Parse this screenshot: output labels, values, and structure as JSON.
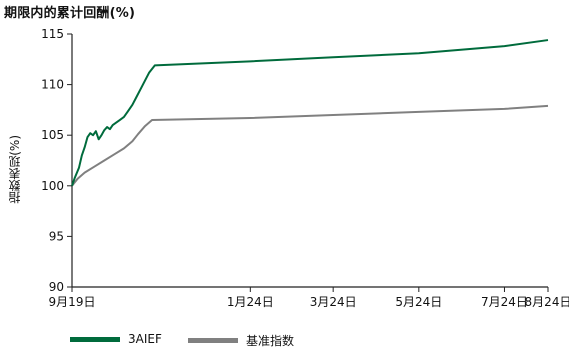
{
  "chart_data": {
    "type": "line",
    "title": "期限内的累计回酬(%)",
    "xlabel": "",
    "ylabel": "指数表现(%)",
    "ylim": [
      90,
      115
    ],
    "yticks": [
      90,
      95,
      100,
      105,
      110,
      115
    ],
    "xlim": [
      "2024-09-19",
      "2025-08-24"
    ],
    "xticks": [
      {
        "date": "2024-09-19",
        "label": "9月19日"
      },
      {
        "date": "2025-01-24",
        "label": "1月24日"
      },
      {
        "date": "2025-03-24",
        "label": "3月24日"
      },
      {
        "date": "2025-05-24",
        "label": "5月24日"
      },
      {
        "date": "2025-07-24",
        "label": "7月24日"
      },
      {
        "date": "2025-08-24",
        "label": "8月24日"
      }
    ],
    "grid": false,
    "legend_position": "bottom-left",
    "series": [
      {
        "name": "3AIEF",
        "color": "#006b3c",
        "points": [
          [
            "2024-09-19",
            100.0
          ],
          [
            "2024-09-21",
            100.8
          ],
          [
            "2024-09-24",
            101.8
          ],
          [
            "2024-09-26",
            103.0
          ],
          [
            "2024-09-28",
            103.8
          ],
          [
            "2024-09-30",
            104.8
          ],
          [
            "2024-10-02",
            105.2
          ],
          [
            "2024-10-04",
            105.0
          ],
          [
            "2024-10-06",
            105.4
          ],
          [
            "2024-10-08",
            104.6
          ],
          [
            "2024-10-10",
            105.0
          ],
          [
            "2024-10-12",
            105.5
          ],
          [
            "2024-10-14",
            105.8
          ],
          [
            "2024-10-16",
            105.6
          ],
          [
            "2024-10-18",
            106.0
          ],
          [
            "2024-10-20",
            106.2
          ],
          [
            "2024-10-23",
            106.5
          ],
          [
            "2024-10-26",
            106.8
          ],
          [
            "2024-10-29",
            107.4
          ],
          [
            "2024-11-01",
            108.0
          ],
          [
            "2024-11-04",
            108.8
          ],
          [
            "2024-11-07",
            109.6
          ],
          [
            "2024-11-10",
            110.4
          ],
          [
            "2024-11-13",
            111.2
          ],
          [
            "2024-11-17",
            111.9
          ],
          [
            "2025-01-24",
            112.3
          ],
          [
            "2025-03-24",
            112.7
          ],
          [
            "2025-05-24",
            113.1
          ],
          [
            "2025-07-24",
            113.8
          ],
          [
            "2025-08-24",
            114.4
          ]
        ]
      },
      {
        "name": "基准指数",
        "color": "#808080",
        "points": [
          [
            "2024-09-19",
            100.0
          ],
          [
            "2024-09-23",
            100.7
          ],
          [
            "2024-09-28",
            101.3
          ],
          [
            "2024-10-05",
            101.9
          ],
          [
            "2024-10-12",
            102.5
          ],
          [
            "2024-10-19",
            103.1
          ],
          [
            "2024-10-26",
            103.7
          ],
          [
            "2024-11-01",
            104.4
          ],
          [
            "2024-11-05",
            105.1
          ],
          [
            "2024-11-10",
            105.9
          ],
          [
            "2024-11-15",
            106.5
          ],
          [
            "2025-01-24",
            106.7
          ],
          [
            "2025-03-24",
            107.0
          ],
          [
            "2025-05-24",
            107.3
          ],
          [
            "2025-07-24",
            107.6
          ],
          [
            "2025-08-24",
            107.9
          ]
        ]
      }
    ]
  }
}
